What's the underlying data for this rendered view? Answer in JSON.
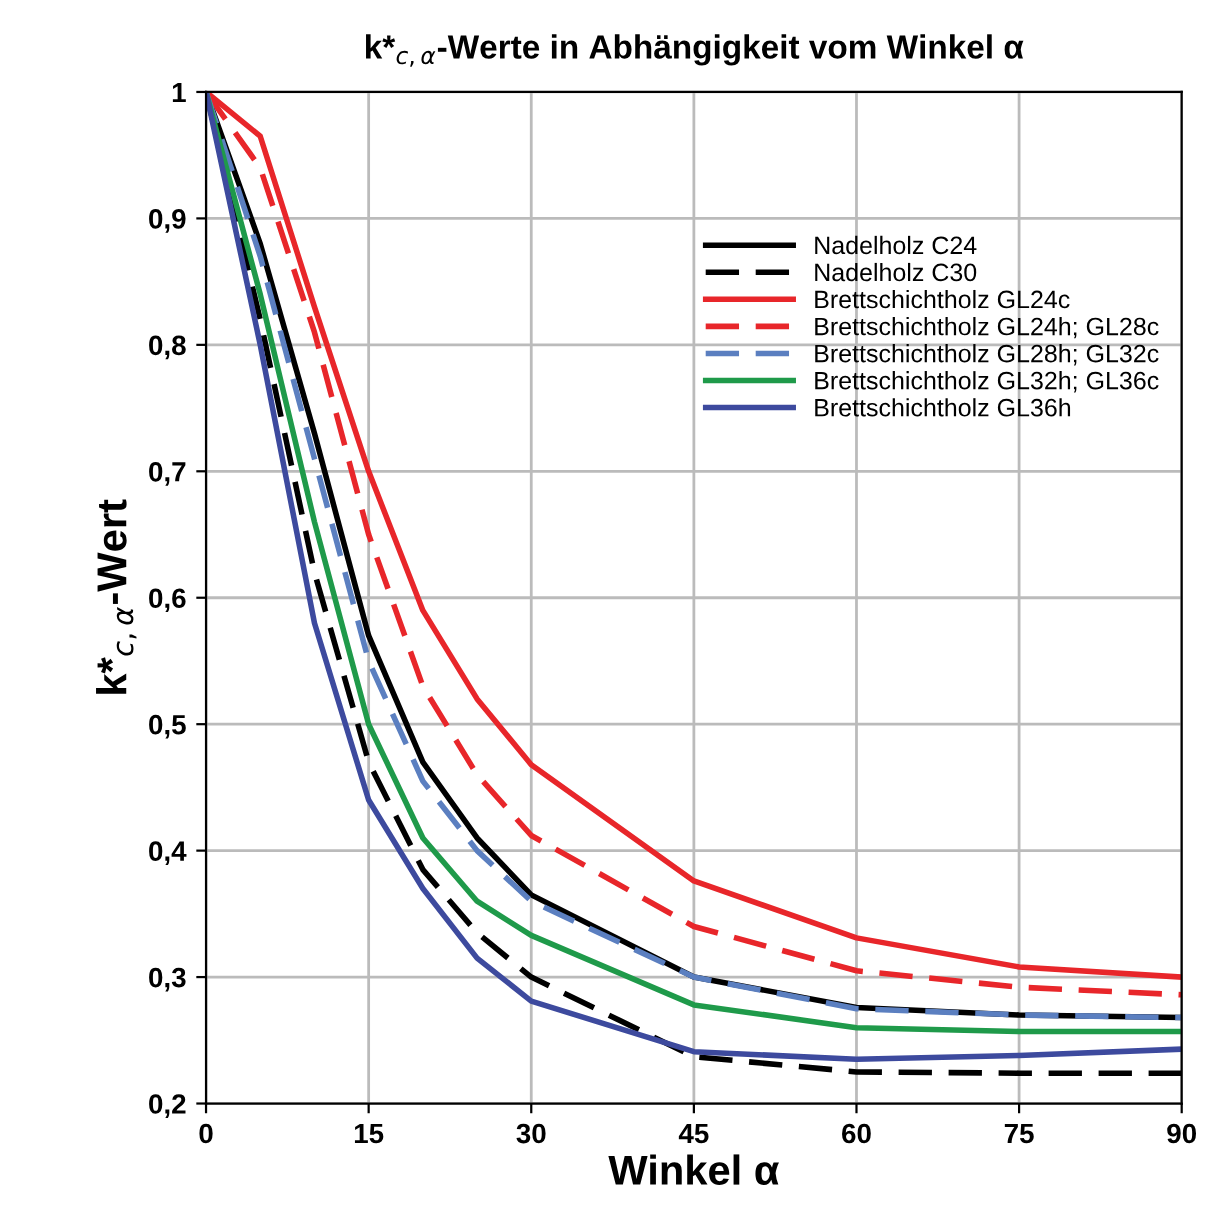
{
  "chart_data": {
    "type": "line",
    "title": "k*$_{c,α}$-Werte in Abhängigkeit vom Winkel α",
    "xlabel": "Winkel α",
    "ylabel": "k*$_{c,α}$-Wert",
    "x": [
      0,
      5,
      10,
      15,
      20,
      25,
      30,
      45,
      60,
      75,
      90
    ],
    "series": [
      {
        "name": "Nadelholz C24",
        "color": "#000000",
        "line_style": "solid",
        "values": [
          1,
          0.88,
          0.73,
          0.57,
          0.47,
          0.41,
          0.365,
          0.3,
          0.276,
          0.27,
          0.268
        ]
      },
      {
        "name": "Nadelholz C30",
        "color": "#000000",
        "line_style": "dashed",
        "values": [
          1,
          0.82,
          0.62,
          0.47,
          0.385,
          0.335,
          0.3,
          0.237,
          0.225,
          0.224,
          0.224
        ]
      },
      {
        "name": "Brettschichtholz GL24c",
        "color": "#e8262a",
        "line_style": "solid",
        "values": [
          1,
          0.965,
          0.83,
          0.7,
          0.59,
          0.52,
          0.468,
          0.376,
          0.331,
          0.308,
          0.3
        ]
      },
      {
        "name": "Brettschichtholz GL24h; GL28c",
        "color": "#e8262a",
        "line_style": "dashed",
        "values": [
          1,
          0.94,
          0.81,
          0.65,
          0.53,
          0.46,
          0.412,
          0.34,
          0.305,
          0.292,
          0.286
        ]
      },
      {
        "name": "Brettschichtholz GL28h; GL32c",
        "color": "#5b7fc0",
        "line_style": "dashed",
        "values": [
          1,
          0.87,
          0.71,
          0.55,
          0.455,
          0.4,
          0.36,
          0.3,
          0.275,
          0.27,
          0.268
        ]
      },
      {
        "name": "Brettschichtholz GL32h; GL36c",
        "color": "#1f9a4a",
        "line_style": "solid",
        "values": [
          1,
          0.84,
          0.66,
          0.5,
          0.41,
          0.36,
          0.333,
          0.278,
          0.26,
          0.257,
          0.257
        ]
      },
      {
        "name": "Brettschichtholz GL36h",
        "color": "#3d4a9e",
        "line_style": "solid",
        "values": [
          1,
          0.8,
          0.58,
          0.44,
          0.37,
          0.315,
          0.281,
          0.241,
          0.235,
          0.238,
          0.243
        ]
      }
    ],
    "xlim": [
      0,
      90
    ],
    "xticks": [
      0,
      15,
      30,
      45,
      60,
      75,
      90
    ],
    "ylim": [
      0.2,
      1
    ],
    "yticks": [
      {
        "value": 0.2,
        "label": "0,2"
      },
      {
        "value": 0.3,
        "label": "0,3"
      },
      {
        "value": 0.4,
        "label": "0,4"
      },
      {
        "value": 0.5,
        "label": "0,5"
      },
      {
        "value": 0.6,
        "label": "0,6"
      },
      {
        "value": 0.7,
        "label": "0,7"
      },
      {
        "value": 0.8,
        "label": "0,8"
      },
      {
        "value": 0.9,
        "label": "0,9"
      },
      {
        "value": 1,
        "label": "1"
      }
    ],
    "grid": true,
    "legend": "top right"
  }
}
